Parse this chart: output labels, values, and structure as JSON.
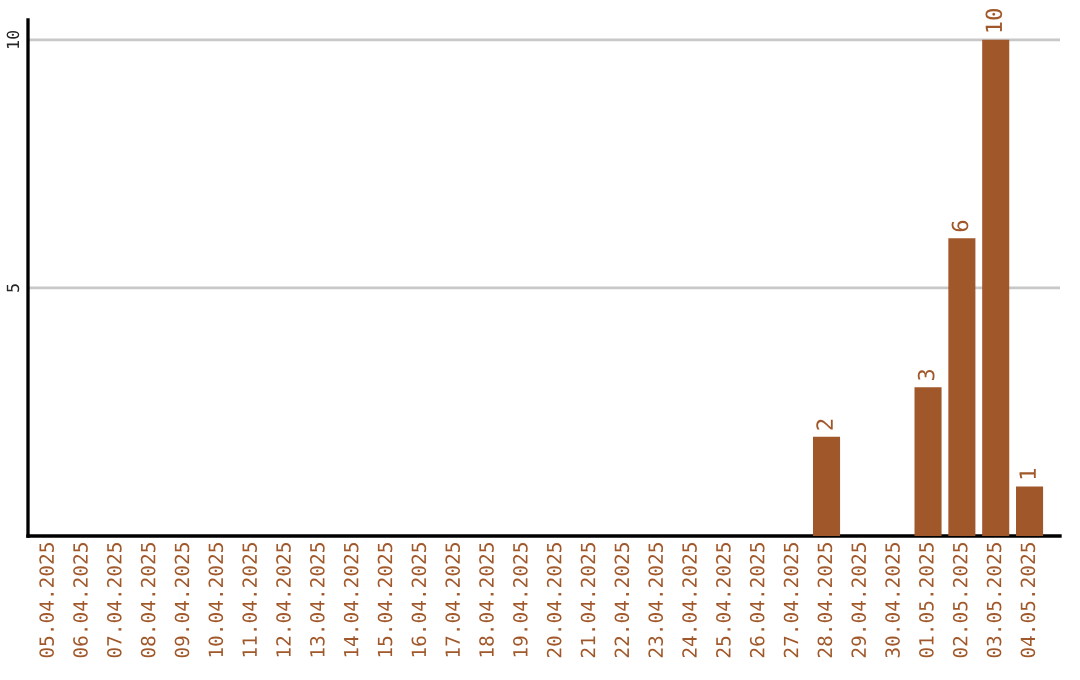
{
  "chart_data": {
    "type": "bar",
    "categories": [
      "05.04.2025",
      "06.04.2025",
      "07.04.2025",
      "08.04.2025",
      "09.04.2025",
      "10.04.2025",
      "11.04.2025",
      "12.04.2025",
      "13.04.2025",
      "14.04.2025",
      "15.04.2025",
      "16.04.2025",
      "17.04.2025",
      "18.04.2025",
      "19.04.2025",
      "20.04.2025",
      "21.04.2025",
      "22.04.2025",
      "23.04.2025",
      "24.04.2025",
      "25.04.2025",
      "26.04.2025",
      "27.04.2025",
      "28.04.2025",
      "29.04.2025",
      "30.04.2025",
      "01.05.2025",
      "02.05.2025",
      "03.05.2025",
      "04.05.2025"
    ],
    "values": [
      0,
      0,
      0,
      0,
      0,
      0,
      0,
      0,
      0,
      0,
      0,
      0,
      0,
      0,
      0,
      0,
      0,
      0,
      0,
      0,
      0,
      0,
      0,
      2,
      0,
      0,
      3,
      6,
      10,
      1
    ],
    "value_labels": [
      null,
      null,
      null,
      null,
      null,
      null,
      null,
      null,
      null,
      null,
      null,
      null,
      null,
      null,
      null,
      null,
      null,
      null,
      null,
      null,
      null,
      null,
      null,
      "2",
      null,
      null,
      "3",
      "6",
      "10",
      "1"
    ],
    "color": "#a0582a",
    "ylim": [
      0,
      10.4
    ],
    "yticks": [
      5,
      10
    ],
    "grid": "y"
  }
}
